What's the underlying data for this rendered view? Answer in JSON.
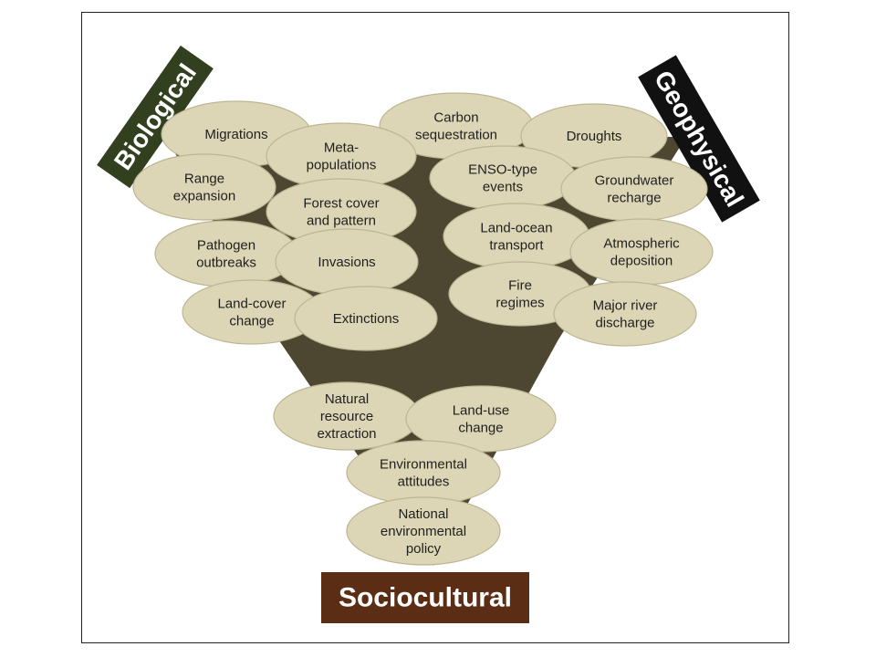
{
  "categories": {
    "biological": "Biological",
    "geophysical": "Geophysical",
    "sociocultural": "Sociocultural"
  },
  "colors": {
    "funnel": "#4d4732",
    "ellipse_fill": "#dcd6b6",
    "biological_bg": "#33401f",
    "geophysical_bg": "#111111",
    "sociocultural_bg": "#5a2d14"
  },
  "nodes": {
    "migrations": [
      "Migrations"
    ],
    "carbon": [
      "Carbon",
      "sequestration"
    ],
    "droughts": [
      "Droughts"
    ],
    "metapop": [
      "Meta-",
      "populations"
    ],
    "range": [
      "Range",
      "expansion"
    ],
    "enso": [
      "ENSO-type",
      "events"
    ],
    "groundwater": [
      "Groundwater",
      "recharge"
    ],
    "forest": [
      "Forest cover",
      "and pattern"
    ],
    "pathogen": [
      "Pathogen",
      "outbreaks"
    ],
    "landocean": [
      "Land-ocean",
      "transport"
    ],
    "atmospheric": [
      "Atmospheric",
      "deposition"
    ],
    "invasions": [
      "Invasions"
    ],
    "landcover": [
      "Land-cover",
      "change"
    ],
    "extinctions": [
      "Extinctions"
    ],
    "fire": [
      "Fire",
      "regimes"
    ],
    "river": [
      "Major river",
      "discharge"
    ],
    "natural": [
      "Natural",
      "resource",
      "extraction"
    ],
    "landuse": [
      "Land-use",
      "change"
    ],
    "attitudes": [
      "Environmental",
      "attitudes"
    ],
    "policy": [
      "National",
      "environmental",
      "policy"
    ]
  }
}
